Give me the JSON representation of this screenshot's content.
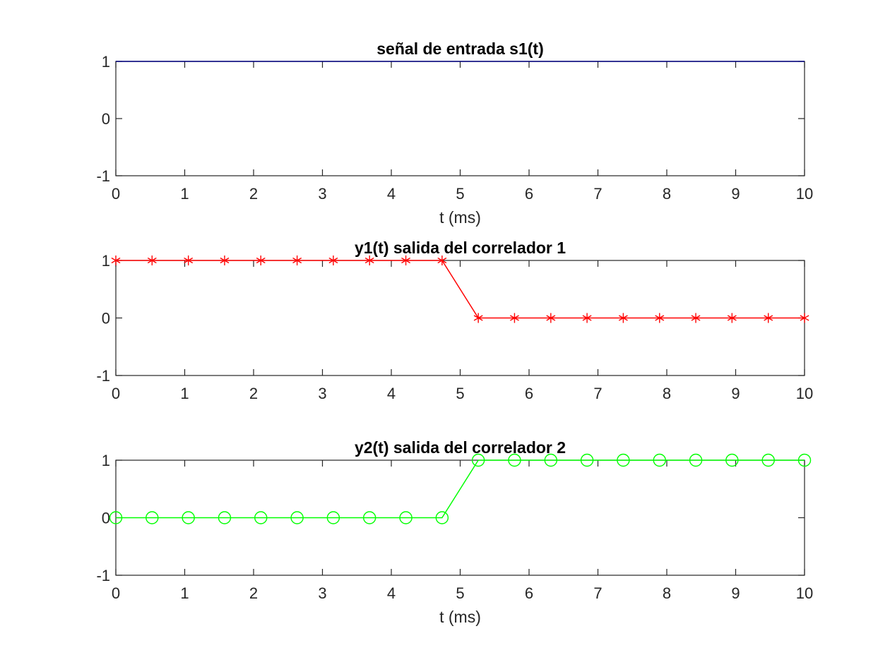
{
  "chart_data": [
    {
      "type": "line",
      "title": "señal de entrada s1(t)",
      "xlabel": "t (ms)",
      "ylabel": "",
      "xlim": [
        0,
        10
      ],
      "ylim": [
        -1,
        1
      ],
      "xticks": [
        "0",
        "1",
        "2",
        "3",
        "4",
        "5",
        "6",
        "7",
        "8",
        "9",
        "10"
      ],
      "yticks": [
        "-1",
        "0",
        "1"
      ],
      "grid": false,
      "series": [
        {
          "color": "#00007f",
          "marker": "none",
          "x": [
            0,
            10
          ],
          "y": [
            1,
            1
          ]
        }
      ]
    },
    {
      "type": "line",
      "title": "y1(t) salida del correlador 1",
      "xlabel": "",
      "ylabel": "",
      "xlim": [
        0,
        10
      ],
      "ylim": [
        -1,
        1
      ],
      "xticks": [
        "0",
        "1",
        "2",
        "3",
        "4",
        "5",
        "6",
        "7",
        "8",
        "9",
        "10"
      ],
      "yticks": [
        "-1",
        "0",
        "1"
      ],
      "grid": false,
      "series": [
        {
          "color": "#ff0000",
          "marker": "asterisk",
          "x": [
            0,
            0.526,
            1.053,
            1.579,
            2.105,
            2.632,
            3.158,
            3.684,
            4.211,
            4.737,
            5.263,
            5.789,
            6.316,
            6.842,
            7.368,
            7.895,
            8.421,
            8.947,
            9.474,
            10
          ],
          "y": [
            1,
            1,
            1,
            1,
            1,
            1,
            1,
            1,
            1,
            1,
            0,
            0,
            0,
            0,
            0,
            0,
            0,
            0,
            0,
            0
          ]
        }
      ]
    },
    {
      "type": "line",
      "title": "y2(t) salida del correlador 2",
      "xlabel": "t (ms)",
      "ylabel": "",
      "xlim": [
        0,
        10
      ],
      "ylim": [
        -1,
        1
      ],
      "xticks": [
        "0",
        "1",
        "2",
        "3",
        "4",
        "5",
        "6",
        "7",
        "8",
        "9",
        "10"
      ],
      "yticks": [
        "-1",
        "0",
        "1"
      ],
      "grid": false,
      "series": [
        {
          "color": "#00ff00",
          "marker": "circle",
          "x": [
            0,
            0.526,
            1.053,
            1.579,
            2.105,
            2.632,
            3.158,
            3.684,
            4.211,
            4.737,
            5.263,
            5.789,
            6.316,
            6.842,
            7.368,
            7.895,
            8.421,
            8.947,
            9.474,
            10
          ],
          "y": [
            0,
            0,
            0,
            0,
            0,
            0,
            0,
            0,
            0,
            0,
            1,
            1,
            1,
            1,
            1,
            1,
            1,
            1,
            1,
            1
          ]
        }
      ]
    }
  ]
}
